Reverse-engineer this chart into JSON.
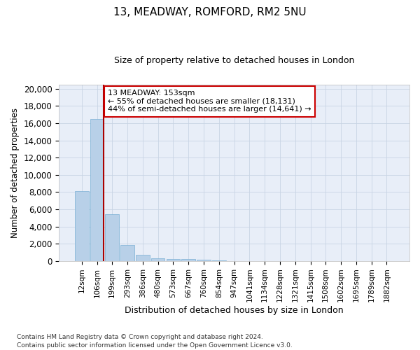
{
  "title1": "13, MEADWAY, ROMFORD, RM2 5NU",
  "title2": "Size of property relative to detached houses in London",
  "xlabel": "Distribution of detached houses by size in London",
  "ylabel": "Number of detached properties",
  "categories": [
    "12sqm",
    "106sqm",
    "199sqm",
    "293sqm",
    "386sqm",
    "480sqm",
    "573sqm",
    "667sqm",
    "760sqm",
    "854sqm",
    "947sqm",
    "1041sqm",
    "1134sqm",
    "1228sqm",
    "1321sqm",
    "1415sqm",
    "1508sqm",
    "1602sqm",
    "1695sqm",
    "1789sqm",
    "1882sqm"
  ],
  "values": [
    8100,
    16500,
    5400,
    1850,
    750,
    350,
    270,
    220,
    200,
    60,
    20,
    10,
    5,
    3,
    2,
    1,
    1,
    1,
    0,
    0,
    0
  ],
  "bar_color": "#b8d0e8",
  "bar_edge_color": "#7aafd4",
  "vline_color": "#aa0000",
  "annotation_text": "13 MEADWAY: 153sqm\n← 55% of detached houses are smaller (18,131)\n44% of semi-detached houses are larger (14,641) →",
  "annotation_box_color": "#ffffff",
  "annotation_box_edge": "#cc0000",
  "ylim": [
    0,
    20500
  ],
  "yticks": [
    0,
    2000,
    4000,
    6000,
    8000,
    10000,
    12000,
    14000,
    16000,
    18000,
    20000
  ],
  "grid_color": "#c8d4e4",
  "background_color": "#e8eef8",
  "footer_line1": "Contains HM Land Registry data © Crown copyright and database right 2024.",
  "footer_line2": "Contains public sector information licensed under the Open Government Licence v3.0."
}
